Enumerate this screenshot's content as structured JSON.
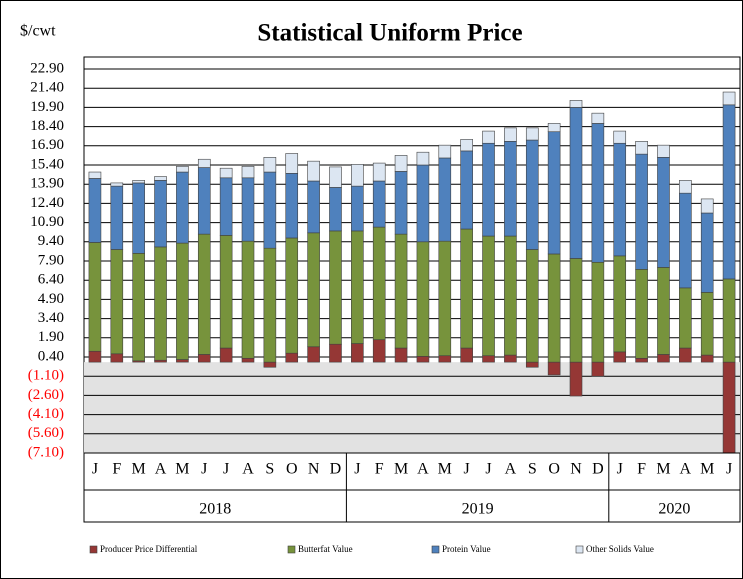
{
  "chart_data": {
    "type": "bar",
    "stacked": true,
    "title": "Statistical Uniform Price",
    "y_label": "$/cwt",
    "categories": [
      "J",
      "F",
      "M",
      "A",
      "M",
      "J",
      "J",
      "A",
      "S",
      "O",
      "N",
      "D",
      "J",
      "F",
      "M",
      "A",
      "M",
      "J",
      "J",
      "A",
      "S",
      "O",
      "N",
      "D",
      "J",
      "F",
      "M",
      "A",
      "M",
      "J"
    ],
    "groups": [
      "2018",
      "2019",
      "2020"
    ],
    "series": [
      {
        "name": "Producer Price Differential",
        "color": "#953735",
        "values": [
          0.85,
          0.65,
          0.1,
          0.15,
          0.2,
          0.6,
          1.1,
          0.3,
          -0.4,
          0.7,
          1.2,
          1.4,
          1.45,
          1.75,
          1.1,
          0.45,
          0.5,
          1.1,
          0.5,
          0.55,
          -0.4,
          -1.0,
          -2.65,
          -1.1,
          0.8,
          0.3,
          0.6,
          1.1,
          0.55,
          -7.1
        ]
      },
      {
        "name": "Butterfat Value",
        "color": "#77933c",
        "values": [
          8.5,
          8.15,
          8.4,
          8.85,
          9.1,
          9.4,
          8.8,
          9.15,
          8.9,
          9.0,
          8.9,
          8.85,
          8.8,
          8.8,
          8.9,
          8.95,
          8.95,
          9.3,
          9.35,
          9.3,
          8.8,
          8.45,
          8.1,
          7.8,
          7.5,
          6.95,
          6.8,
          4.7,
          4.9,
          6.5
        ]
      },
      {
        "name": "Protein Value",
        "color": "#4f81bd",
        "values": [
          5.0,
          4.95,
          5.5,
          5.2,
          5.55,
          5.2,
          4.5,
          4.95,
          5.95,
          5.05,
          4.05,
          3.4,
          3.5,
          3.6,
          4.9,
          6.0,
          6.5,
          6.1,
          7.25,
          7.4,
          8.55,
          9.55,
          11.8,
          10.85,
          8.8,
          9.0,
          8.6,
          7.4,
          6.2,
          13.6
        ]
      },
      {
        "name": "Other Solids Value",
        "color": "#dce6f2",
        "values": [
          0.5,
          0.25,
          0.2,
          0.3,
          0.45,
          0.65,
          0.75,
          0.9,
          1.15,
          1.55,
          1.55,
          1.6,
          1.7,
          1.4,
          1.25,
          1.0,
          1.0,
          0.9,
          0.95,
          1.05,
          0.95,
          0.65,
          0.55,
          0.8,
          0.95,
          1.0,
          0.95,
          1.0,
          1.1,
          1.0
        ]
      }
    ],
    "ylim": [
      -7.1,
      22.9
    ],
    "yticks": [
      {
        "value": -7.1,
        "label": "(7.10)"
      },
      {
        "value": -5.6,
        "label": "(5.60)"
      },
      {
        "value": -4.1,
        "label": "(4.10)"
      },
      {
        "value": -2.6,
        "label": "(2.60)"
      },
      {
        "value": -1.1,
        "label": "(1.10)"
      },
      {
        "value": 0.4,
        "label": "0.40"
      },
      {
        "value": 1.9,
        "label": "1.90"
      },
      {
        "value": 3.4,
        "label": "3.40"
      },
      {
        "value": 4.9,
        "label": "4.90"
      },
      {
        "value": 6.4,
        "label": "6.40"
      },
      {
        "value": 7.9,
        "label": "7.90"
      },
      {
        "value": 9.4,
        "label": "9.40"
      },
      {
        "value": 10.9,
        "label": "10.90"
      },
      {
        "value": 12.4,
        "label": "12.40"
      },
      {
        "value": 13.9,
        "label": "13.90"
      },
      {
        "value": 15.4,
        "label": "15.40"
      },
      {
        "value": 16.9,
        "label": "16.90"
      },
      {
        "value": 18.4,
        "label": "18.40"
      },
      {
        "value": 19.9,
        "label": "19.90"
      },
      {
        "value": 21.4,
        "label": "21.40"
      },
      {
        "value": 22.9,
        "label": "22.90"
      }
    ],
    "grid": true,
    "negative_label_color": "#ff0000",
    "legend": "bottom"
  }
}
